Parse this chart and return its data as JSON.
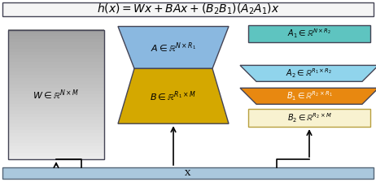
{
  "title": "$h(x) = Wx + BAx + (B_2B_1)(A_2A_1)x$",
  "title_fontsize": 10,
  "bg_color": "#ffffff",
  "title_box_color": "#f5f5f5",
  "title_box_edge": "#555555",
  "x_bar_color": "#aac8dd",
  "x_bar_edge": "#556677",
  "x_label": "X",
  "W_label": "$W \\in \\mathbb{R}^{N\\times M}$",
  "A_color": "#8ab8e0",
  "A_label": "$A \\in \\mathbb{R}^{N\\times R_1}$",
  "B_color": "#d4a800",
  "B_label": "$B \\in \\mathbb{R}^{R_1\\times M}$",
  "A1_color": "#5ec4c0",
  "A1_label": "$A_1 \\in \\mathbb{R}^{N\\times R_2}$",
  "A2_color": "#90d4ec",
  "A2_label": "$A_2 \\in \\mathbb{R}^{R_1\\times R_2}$",
  "B1_color": "#e88810",
  "B1_label": "$B_1 \\in \\mathbb{R}^{R_2\\times R_1}$",
  "B2_color": "#f8f2d0",
  "B2_label": "$B_2 \\in \\mathbb{R}^{R_2\\times M}$",
  "edge_color": "#444455",
  "label_fontsize": 8,
  "small_label_fontsize": 7
}
